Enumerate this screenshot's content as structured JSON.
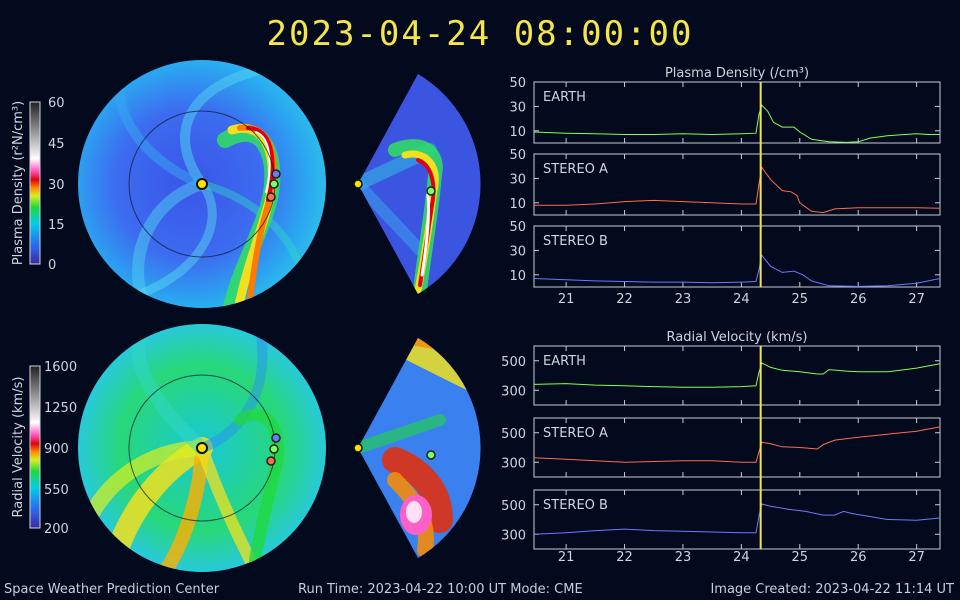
{
  "header": {
    "timestamp": "2023-04-24  08:00:00"
  },
  "colors": {
    "background": "#030a1e",
    "earth": "#7fff5a",
    "stereo_a": "#ff6a50",
    "stereo_b": "#6a7aff",
    "time_marker": "#f3e54a"
  },
  "colorbars": [
    {
      "label": "Plasma Density (r²N/cm³)",
      "ticks": [
        "60",
        "45",
        "30",
        "15",
        "0"
      ]
    },
    {
      "label": "Radial Velocity (km/s)",
      "ticks": [
        "1600",
        "1250",
        "900",
        "550",
        "200"
      ]
    }
  ],
  "footer": {
    "left": "Space Weather Prediction Center",
    "center": "Run Time: 2023-04-22 10:00 UT   Mode: CME",
    "right": "Image Created: 2023-04-22 11:14 UT"
  },
  "chart_data": [
    {
      "type": "line",
      "title": "Plasma Density (/cm³)",
      "x_ticks": [
        "21",
        "22",
        "23",
        "24",
        "25",
        "26",
        "27"
      ],
      "xlim": [
        20.45,
        27.4
      ],
      "ylim": [
        0,
        50
      ],
      "y_ticks": [
        "50",
        "30",
        "10"
      ],
      "time_marker": 24.33,
      "panels": [
        {
          "name": "EARTH",
          "color": "#7fff5a",
          "x": [
            20.45,
            21.0,
            21.5,
            22.0,
            22.5,
            23.0,
            23.5,
            24.0,
            24.25,
            24.3,
            24.35,
            24.45,
            24.55,
            24.7,
            24.9,
            25.0,
            25.2,
            25.5,
            25.8,
            26.0,
            26.2,
            26.5,
            26.8,
            27.0,
            27.2,
            27.4
          ],
          "y": [
            9,
            8,
            7.5,
            7,
            7,
            7.5,
            7,
            7.5,
            8,
            23,
            31,
            26,
            17,
            13,
            13,
            9,
            3,
            1,
            0.5,
            1,
            4,
            6,
            7,
            7.5,
            7,
            7
          ]
        },
        {
          "name": "STEREO A",
          "color": "#ff6a50",
          "x": [
            20.45,
            21.0,
            21.5,
            22.0,
            22.5,
            23.0,
            23.5,
            24.0,
            24.25,
            24.3,
            24.35,
            24.5,
            24.7,
            24.85,
            24.95,
            25.0,
            25.2,
            25.4,
            25.6,
            26.0,
            26.5,
            27.0,
            27.4
          ],
          "y": [
            8,
            8,
            9,
            11,
            12,
            11,
            10,
            9,
            9,
            25,
            39,
            29,
            20,
            19,
            16,
            10,
            3,
            2,
            5,
            6,
            6,
            6,
            5.5
          ]
        },
        {
          "name": "STEREO B",
          "color": "#6a7aff",
          "x": [
            20.45,
            21.0,
            21.5,
            22.0,
            22.5,
            23.0,
            23.5,
            24.0,
            24.25,
            24.3,
            24.35,
            24.5,
            24.7,
            24.9,
            25.05,
            25.2,
            25.5,
            26.0,
            26.5,
            27.0,
            27.4
          ],
          "y": [
            7,
            6,
            5,
            4.5,
            4,
            4,
            3.5,
            4,
            4.5,
            14,
            26,
            17,
            12,
            13,
            10,
            5,
            1,
            0.5,
            1,
            3,
            7
          ]
        }
      ]
    },
    {
      "type": "line",
      "title": "Radial Velocity (km/s)",
      "x_ticks": [
        "21",
        "22",
        "23",
        "24",
        "25",
        "26",
        "27"
      ],
      "xlim": [
        20.45,
        27.4
      ],
      "ylim": [
        200,
        600
      ],
      "y_ticks": [
        "500",
        "300"
      ],
      "time_marker": 24.33,
      "panels": [
        {
          "name": "EARTH",
          "color": "#7fff5a",
          "x": [
            20.45,
            21.0,
            21.5,
            22.0,
            22.5,
            23.0,
            23.5,
            24.0,
            24.25,
            24.3,
            24.35,
            24.5,
            24.7,
            25.0,
            25.3,
            25.4,
            25.5,
            25.8,
            26.0,
            26.5,
            27.0,
            27.4
          ],
          "y": [
            340,
            345,
            335,
            330,
            325,
            320,
            320,
            325,
            330,
            420,
            485,
            455,
            435,
            425,
            410,
            410,
            440,
            430,
            425,
            425,
            450,
            480
          ]
        },
        {
          "name": "STEREO A",
          "color": "#ff6a50",
          "x": [
            20.45,
            21.0,
            21.5,
            22.0,
            22.5,
            23.0,
            23.5,
            24.0,
            24.25,
            24.3,
            24.35,
            24.5,
            24.7,
            25.0,
            25.3,
            25.4,
            25.6,
            26.0,
            26.5,
            27.0,
            27.4
          ],
          "y": [
            330,
            320,
            310,
            300,
            305,
            310,
            310,
            300,
            300,
            370,
            435,
            425,
            405,
            400,
            390,
            420,
            450,
            470,
            490,
            510,
            540
          ]
        },
        {
          "name": "STEREO B",
          "color": "#6a7aff",
          "x": [
            20.45,
            21.0,
            21.5,
            22.0,
            22.5,
            23.0,
            23.5,
            24.0,
            24.25,
            24.3,
            24.35,
            24.5,
            24.8,
            25.1,
            25.4,
            25.6,
            25.75,
            25.9,
            26.2,
            26.5,
            27.0,
            27.4
          ],
          "y": [
            300,
            310,
            325,
            335,
            325,
            320,
            315,
            310,
            310,
            420,
            505,
            490,
            470,
            455,
            430,
            430,
            455,
            440,
            420,
            400,
            395,
            410
          ]
        }
      ]
    }
  ]
}
